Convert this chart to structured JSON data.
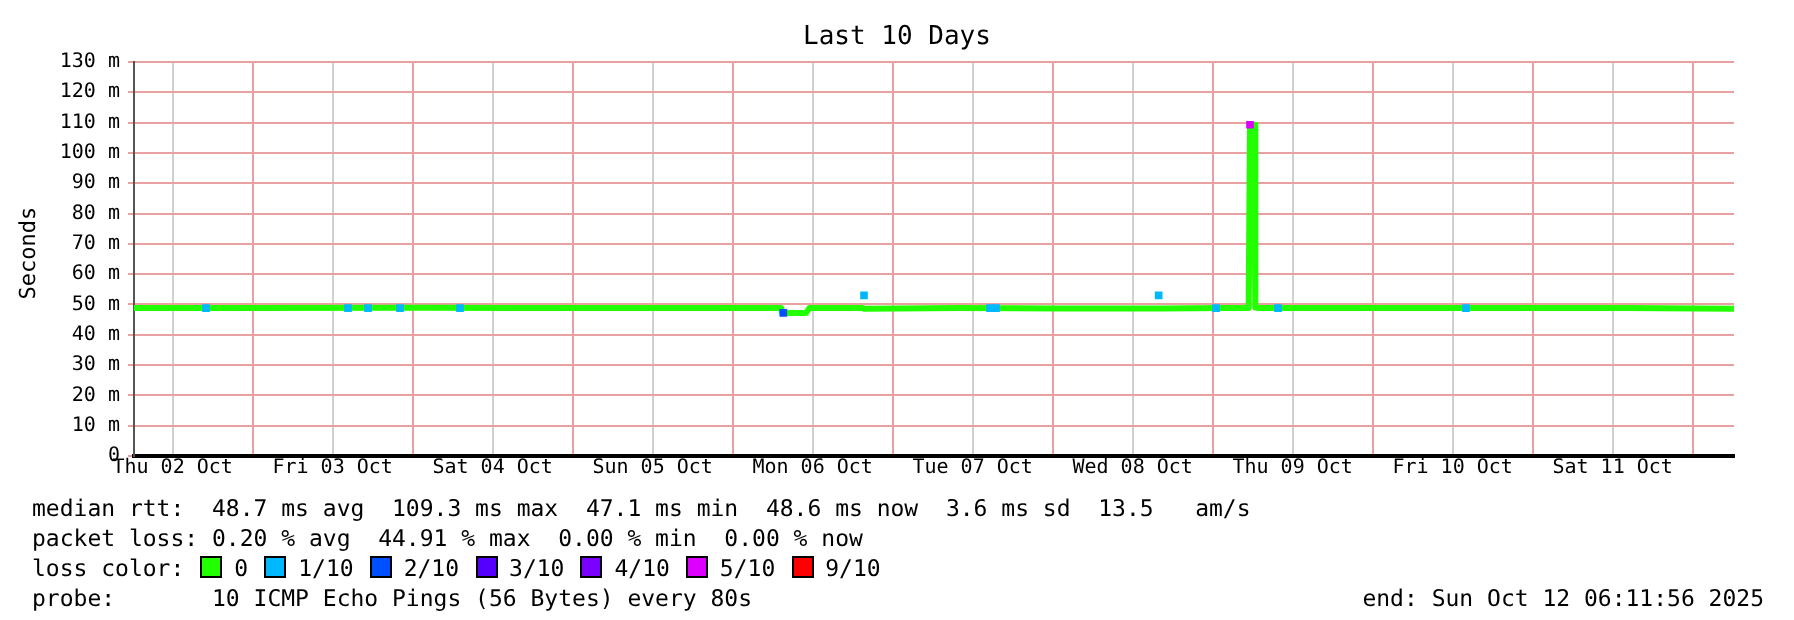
{
  "chart_data": {
    "type": "line",
    "title": "Last 10 Days",
    "ylabel": "Seconds",
    "legend_title": "loss color:",
    "legend": "bottom",
    "grid": true,
    "xlim": [
      "2025-10-02T06:12",
      "2025-10-12T06:12"
    ],
    "xticks": [
      {
        "value": "2025-10-02T12:00",
        "label": "Thu 02 Oct"
      },
      {
        "value": "2025-10-03T00:00",
        "label": null
      },
      {
        "value": "2025-10-03T12:00",
        "label": "Fri 03 Oct"
      },
      {
        "value": "2025-10-04T00:00",
        "label": null
      },
      {
        "value": "2025-10-04T12:00",
        "label": "Sat 04 Oct"
      },
      {
        "value": "2025-10-05T00:00",
        "label": null
      },
      {
        "value": "2025-10-05T12:00",
        "label": "Sun 05 Oct"
      },
      {
        "value": "2025-10-06T00:00",
        "label": null
      },
      {
        "value": "2025-10-06T12:00",
        "label": "Mon 06 Oct"
      },
      {
        "value": "2025-10-07T00:00",
        "label": null
      },
      {
        "value": "2025-10-07T12:00",
        "label": "Tue 07 Oct"
      },
      {
        "value": "2025-10-08T00:00",
        "label": null
      },
      {
        "value": "2025-10-08T12:00",
        "label": "Wed 08 Oct"
      },
      {
        "value": "2025-10-09T00:00",
        "label": null
      },
      {
        "value": "2025-10-09T12:00",
        "label": "Thu 09 Oct"
      },
      {
        "value": "2025-10-10T00:00",
        "label": null
      },
      {
        "value": "2025-10-10T12:00",
        "label": "Fri 10 Oct"
      },
      {
        "value": "2025-10-11T00:00",
        "label": null
      },
      {
        "value": "2025-10-11T12:00",
        "label": "Sat 11 Oct"
      },
      {
        "value": "2025-10-12T00:00",
        "label": null
      }
    ],
    "ylim": [
      0,
      130
    ],
    "yticks": [
      0,
      {
        "value": 10,
        "label": "10 m"
      },
      {
        "value": 20,
        "label": "20 m"
      },
      {
        "value": 30,
        "label": "30 m"
      },
      {
        "value": 40,
        "label": "40 m"
      },
      {
        "value": 50,
        "label": "50 m"
      },
      {
        "value": 60,
        "label": "60 m"
      },
      {
        "value": 70,
        "label": "70 m"
      },
      {
        "value": 80,
        "label": "80 m"
      },
      {
        "value": 90,
        "label": "90 m"
      },
      {
        "value": 100,
        "label": "100 m"
      },
      {
        "value": 110,
        "label": "110 m"
      },
      {
        "value": 120,
        "label": "120 m"
      },
      {
        "value": 130,
        "label": "130 m"
      }
    ],
    "series": [
      {
        "name": "0",
        "color": "#22ff00",
        "marker": "none",
        "x": [
          "2025-10-02T06:12",
          "2025-10-02T20:00",
          "2025-10-04T02:00",
          "2025-10-05T08:00",
          "2025-10-06T04:00",
          "2025-10-06T07:18",
          "2025-10-06T07:24",
          "2025-10-06T11:00",
          "2025-10-06T11:30",
          "2025-10-06T19:30",
          "2025-10-06T19:42",
          "2025-10-07T10:00",
          "2025-10-08T01:00",
          "2025-10-08T16:00",
          "2025-10-09T02:00",
          "2025-10-09T05:24",
          "2025-10-09T05:36",
          "2025-10-09T06:12",
          "2025-10-09T06:24",
          "2025-10-09T07:00",
          "2025-10-10T08:00",
          "2025-10-11T14:00",
          "2025-10-12T06:12"
        ],
        "values": [
          48.8,
          48.8,
          48.9,
          48.8,
          48.8,
          48.8,
          47.2,
          47.2,
          48.8,
          48.8,
          48.6,
          48.8,
          48.7,
          48.7,
          48.8,
          48.8,
          109.3,
          109.3,
          49,
          48.8,
          48.8,
          48.8,
          48.6
        ]
      },
      {
        "name": "1/10",
        "color": "#00b8ff",
        "type": "scatter",
        "marker": "square",
        "x": [
          "2025-10-02T17:00",
          "2025-10-03T14:18",
          "2025-10-03T17:18",
          "2025-10-03T22:06",
          "2025-10-04T07:06",
          "2025-10-06T19:42",
          "2025-10-07T14:36",
          "2025-10-07T15:30",
          "2025-10-08T15:54",
          "2025-10-09T00:30",
          "2025-10-09T09:48",
          "2025-10-10T14:00"
        ],
        "values": [
          48.8,
          48.8,
          48.8,
          48.8,
          48.8,
          53,
          48.8,
          48.8,
          53,
          48.8,
          48.8,
          48.8
        ]
      },
      {
        "name": "2/10",
        "color": "#0050ff",
        "type": "scatter",
        "marker": "square",
        "x": [
          "2025-10-06T07:36"
        ],
        "values": [
          47.2
        ]
      },
      {
        "name": "3/10",
        "color": "#5500ff",
        "type": "scatter",
        "marker": "square"
      },
      {
        "name": "4/10",
        "color": "#7a00ff",
        "type": "scatter",
        "marker": "square"
      },
      {
        "name": "5/10",
        "color": "#dd00ff",
        "type": "scatter",
        "marker": "square",
        "x": [
          "2025-10-09T05:36"
        ],
        "values": [
          109.3
        ]
      },
      {
        "name": "9/10",
        "color": "#ff0000",
        "type": "scatter",
        "marker": "square"
      }
    ],
    "annotations": [
      "median rtt:  48.7 ms avg  109.3 ms max  47.1 ms min  48.6 ms now  3.6 ms sd  13.5   am/s",
      "packet loss: 0.20 % avg  44.91 % max  0.00 % min  0.00 % now",
      "probe:       10 ICMP Echo Pings (56 Bytes) every 80s",
      "end: Sun Oct 12 06:11:56 2025"
    ]
  }
}
